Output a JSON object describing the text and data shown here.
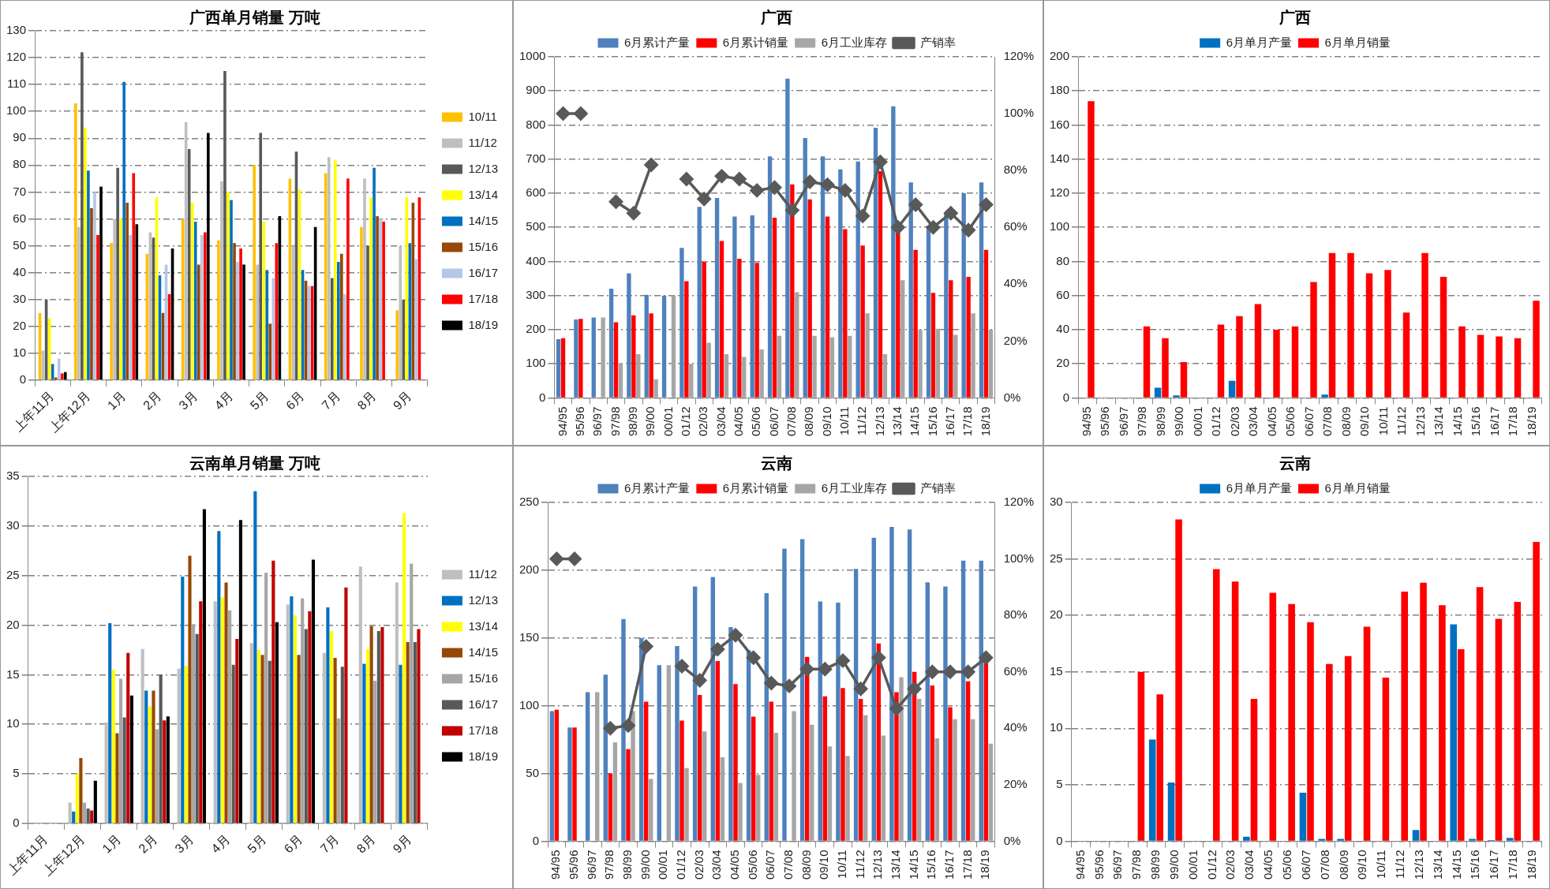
{
  "chart_data": [
    {
      "type": "bar",
      "title": "广西单月销量 万吨",
      "categories": [
        "上年11月",
        "上年12月",
        "1月",
        "2月",
        "3月",
        "4月",
        "5月",
        "6月",
        "7月",
        "8月",
        "9月"
      ],
      "ylim": [
        0,
        130
      ],
      "yticks": [
        0,
        10,
        20,
        30,
        40,
        50,
        60,
        70,
        80,
        90,
        100,
        110,
        120,
        130
      ],
      "grid": "y",
      "legend": "right",
      "series": [
        {
          "name": "10/11",
          "color": "#ffc000",
          "values": [
            25,
            103,
            51,
            47,
            60,
            52,
            80,
            75,
            77,
            57,
            26
          ]
        },
        {
          "name": "11/12",
          "color": "#bfbfbf",
          "values": [
            11,
            57,
            60,
            55,
            96,
            74,
            43,
            50,
            83,
            75,
            50
          ]
        },
        {
          "name": "12/13",
          "color": "#595959",
          "values": [
            30,
            122,
            79,
            53,
            86,
            115,
            92,
            85,
            38,
            50,
            30
          ]
        },
        {
          "name": "13/14",
          "color": "#ffff00",
          "values": [
            23,
            94,
            60,
            68,
            66,
            70,
            59,
            71,
            82,
            68,
            68
          ]
        },
        {
          "name": "14/15",
          "color": "#0070c0",
          "values": [
            6,
            78,
            111,
            39,
            59,
            67,
            41,
            41,
            44,
            79,
            51
          ]
        },
        {
          "name": "15/16",
          "color": "#974706",
          "values": [
            1,
            64,
            66,
            25,
            43,
            51,
            21,
            37,
            47,
            61,
            66
          ]
        },
        {
          "name": "16/17",
          "color": "#b4c7e7",
          "values": [
            8,
            70,
            54,
            43,
            54,
            44,
            38,
            35,
            32,
            60,
            45
          ]
        },
        {
          "name": "17/18",
          "color": "#ff0000",
          "values": [
            2.5,
            54,
            77,
            32,
            55,
            49,
            51,
            35,
            75,
            59,
            68
          ]
        },
        {
          "name": "18/19",
          "color": "#000000",
          "values": [
            3,
            72,
            58,
            49,
            92,
            43,
            61,
            57,
            null,
            null,
            null
          ]
        }
      ]
    },
    {
      "type": "bar",
      "title": "广西",
      "categories": [
        "94/95",
        "95/96",
        "96/97",
        "97/98",
        "98/99",
        "99/00",
        "00/01",
        "01/12",
        "02/03",
        "03/04",
        "04/05",
        "05/06",
        "06/07",
        "07/08",
        "08/09",
        "09/10",
        "10/11",
        "11/12",
        "12/13",
        "13/14",
        "14/15",
        "15/16",
        "16/17",
        "17/18",
        "18/19"
      ],
      "ylim": [
        0,
        1000
      ],
      "yticks": [
        0,
        100,
        200,
        300,
        400,
        500,
        600,
        700,
        800,
        900,
        1000
      ],
      "y2lim": [
        0,
        120
      ],
      "y2ticks": [
        {
          "value": 0,
          "label": "0%"
        },
        {
          "value": 20,
          "label": "20%"
        },
        {
          "value": 40,
          "label": "40%"
        },
        {
          "value": 60,
          "label": "60%"
        },
        {
          "value": 80,
          "label": "80%"
        },
        {
          "value": 100,
          "label": "100%"
        },
        {
          "value": 120,
          "label": "120%"
        }
      ],
      "grid": "y",
      "legend": "top",
      "marker": "diamond",
      "series": [
        {
          "name": "6月累计产量",
          "color": "#4f81bd",
          "values": [
            172,
            230,
            236,
            320,
            365,
            302,
            300,
            440,
            560,
            586,
            532,
            535,
            708,
            936,
            762,
            708,
            670,
            693,
            792,
            855,
            632,
            505,
            540,
            600,
            632
          ]
        },
        {
          "name": "6月累计销量",
          "color": "#ff0000",
          "values": [
            175,
            232,
            null,
            222,
            242,
            248,
            null,
            342,
            400,
            460,
            408,
            396,
            528,
            626,
            582,
            532,
            495,
            447,
            665,
            490,
            434,
            308,
            345,
            355,
            434
          ]
        },
        {
          "name": "6月工业库存",
          "color": "#a6a6a6",
          "values": [
            null,
            null,
            236,
            102,
            128,
            55,
            300,
            100,
            162,
            128,
            120,
            142,
            182,
            310,
            182,
            178,
            182,
            248,
            128,
            345,
            200,
            203,
            185,
            248,
            200
          ]
        },
        {
          "name": "产销率",
          "type": "line",
          "axis": "y2",
          "color": "#595959",
          "values": [
            100,
            100,
            null,
            69,
            65,
            82,
            null,
            77,
            70,
            78,
            77,
            73,
            74,
            66,
            76,
            75,
            73,
            64,
            83,
            60,
            68,
            60,
            65,
            59,
            68
          ]
        }
      ]
    },
    {
      "type": "bar",
      "title": "广西",
      "categories": [
        "94/95",
        "95/96",
        "96/97",
        "97/98",
        "98/99",
        "99/00",
        "00/01",
        "01/12",
        "02/03",
        "03/04",
        "04/05",
        "05/06",
        "06/07",
        "07/08",
        "08/09",
        "09/10",
        "10/11",
        "11/12",
        "12/13",
        "13/14",
        "14/15",
        "15/16",
        "16/17",
        "17/18",
        "18/19"
      ],
      "ylim": [
        0,
        200
      ],
      "yticks": [
        0,
        20,
        40,
        60,
        80,
        100,
        120,
        140,
        160,
        180,
        200
      ],
      "grid": "y",
      "legend": "top",
      "series": [
        {
          "name": "6月单月产量",
          "color": "#0070c0",
          "values": [
            null,
            null,
            null,
            null,
            6,
            1.5,
            null,
            null,
            10,
            null,
            null,
            null,
            null,
            2,
            null,
            null,
            null,
            null,
            null,
            null,
            null,
            null,
            null,
            null,
            null
          ]
        },
        {
          "name": "6月单月销量",
          "color": "#ff0000",
          "values": [
            174,
            null,
            null,
            42,
            35,
            21,
            null,
            43,
            48,
            55,
            40,
            42,
            68,
            85,
            85,
            73,
            75,
            50,
            85,
            71,
            42,
            37,
            36,
            35,
            57
          ]
        }
      ]
    },
    {
      "type": "bar",
      "title": "云南单月销量 万吨",
      "categories": [
        "上年11月",
        "上年12月",
        "1月",
        "2月",
        "3月",
        "4月",
        "5月",
        "6月",
        "7月",
        "8月",
        "9月"
      ],
      "ylim": [
        0,
        35
      ],
      "yticks": [
        0,
        5,
        10,
        15,
        20,
        25,
        30,
        35
      ],
      "grid": "y",
      "legend": "right",
      "series": [
        {
          "name": "11/12",
          "color": "#bfbfbf",
          "values": [
            null,
            2.1,
            10.2,
            17.6,
            15.6,
            22.4,
            18.2,
            22.1,
            17.2,
            25.9,
            24.3
          ]
        },
        {
          "name": "12/13",
          "color": "#0070c0",
          "values": [
            null,
            1.2,
            20.2,
            13.4,
            24.9,
            29.5,
            33.5,
            22.9,
            21.8,
            16.1,
            16
          ]
        },
        {
          "name": "13/14",
          "color": "#ffff00",
          "values": [
            null,
            5,
            15.5,
            11.8,
            15.9,
            22.8,
            17.5,
            21,
            19.4,
            17.6,
            31.3
          ]
        },
        {
          "name": "14/15",
          "color": "#974706",
          "values": [
            null,
            6.6,
            9.1,
            13.4,
            27,
            24.3,
            17,
            17,
            16.7,
            19.9,
            18.3
          ]
        },
        {
          "name": "15/16",
          "color": "#a6a6a6",
          "values": [
            null,
            2.1,
            14.6,
            9.5,
            20.1,
            21.5,
            25.3,
            22.7,
            10.6,
            14.4,
            26.2
          ]
        },
        {
          "name": "16/17",
          "color": "#595959",
          "values": [
            null,
            1.5,
            10.7,
            15,
            19.1,
            16,
            16.4,
            19.6,
            15.8,
            19.4,
            18.3
          ]
        },
        {
          "name": "17/18",
          "color": "#c00000",
          "values": [
            null,
            1.3,
            17.2,
            10.4,
            22.4,
            18.6,
            26.5,
            21.4,
            23.8,
            19.8,
            19.6
          ]
        },
        {
          "name": "18/19",
          "color": "#000000",
          "values": [
            null,
            4.3,
            12.9,
            10.8,
            31.7,
            30.6,
            20.3,
            26.6,
            null,
            null,
            null
          ]
        }
      ]
    },
    {
      "type": "bar",
      "title": "云南",
      "categories": [
        "94/95",
        "95/96",
        "96/97",
        "97/98",
        "98/99",
        "99/00",
        "00/01",
        "01/12",
        "02/03",
        "03/04",
        "04/05",
        "05/06",
        "06/07",
        "07/08",
        "08/09",
        "09/10",
        "10/11",
        "11/12",
        "12/13",
        "13/14",
        "14/15",
        "15/16",
        "16/17",
        "17/18",
        "18/19"
      ],
      "ylim": [
        0,
        250
      ],
      "yticks": [
        0,
        50,
        100,
        150,
        200,
        250
      ],
      "y2lim": [
        0,
        120
      ],
      "y2ticks": [
        {
          "value": 0,
          "label": "0%"
        },
        {
          "value": 20,
          "label": "20%"
        },
        {
          "value": 40,
          "label": "40%"
        },
        {
          "value": 60,
          "label": "60%"
        },
        {
          "value": 80,
          "label": "80%"
        },
        {
          "value": 100,
          "label": "100%"
        },
        {
          "value": 120,
          "label": "120%"
        }
      ],
      "grid": "y",
      "legend": "top",
      "marker": "diamond",
      "series": [
        {
          "name": "6月累计产量",
          "color": "#4f81bd",
          "values": [
            96,
            84,
            110,
            123,
            164,
            150,
            130,
            144,
            188,
            195,
            158,
            141,
            183,
            216,
            223,
            177,
            176,
            201,
            224,
            232,
            230,
            191,
            188,
            207,
            207
          ]
        },
        {
          "name": "6月累计销量",
          "color": "#ff0000",
          "values": [
            97,
            84,
            null,
            50,
            68,
            103,
            null,
            89,
            108,
            133,
            116,
            92,
            103,
            null,
            136,
            107,
            113,
            105,
            146,
            110,
            125,
            115,
            99,
            118,
            133
          ]
        },
        {
          "name": "6月工业库存",
          "color": "#a6a6a6",
          "values": [
            null,
            null,
            110,
            73,
            96,
            46,
            130,
            54,
            81,
            62,
            43,
            49,
            80,
            96,
            86,
            70,
            63,
            93,
            78,
            121,
            105,
            76,
            90,
            90,
            72
          ]
        },
        {
          "name": "产销率",
          "type": "line",
          "axis": "y2",
          "color": "#595959",
          "values": [
            100,
            100,
            null,
            40,
            41,
            69,
            null,
            62,
            57,
            68,
            73,
            65,
            56,
            55,
            61,
            61,
            64,
            54,
            65,
            47,
            54,
            60,
            60,
            60,
            65
          ]
        }
      ]
    },
    {
      "type": "bar",
      "title": "云南",
      "categories": [
        "94/95",
        "95/96",
        "96/97",
        "97/98",
        "98/99",
        "99/00",
        "00/01",
        "01/12",
        "02/03",
        "03/04",
        "04/05",
        "05/06",
        "06/07",
        "07/08",
        "08/09",
        "09/10",
        "10/11",
        "11/12",
        "12/13",
        "13/14",
        "14/15",
        "15/16",
        "16/17",
        "17/18",
        "18/19"
      ],
      "ylim": [
        0,
        30
      ],
      "yticks": [
        0,
        5,
        10,
        15,
        20,
        25,
        30
      ],
      "grid": "y",
      "legend": "top",
      "series": [
        {
          "name": "6月单月产量",
          "color": "#0070c0",
          "values": [
            null,
            null,
            null,
            null,
            9,
            5.2,
            null,
            null,
            null,
            0.4,
            null,
            null,
            4.3,
            0.2,
            0.2,
            null,
            null,
            null,
            1,
            null,
            19.2,
            0.2,
            0.1,
            0.3,
            null
          ]
        },
        {
          "name": "6月单月销量",
          "color": "#ff0000",
          "values": [
            null,
            null,
            null,
            15,
            13,
            28.5,
            null,
            24.1,
            23,
            12.6,
            22,
            21,
            19.4,
            15.7,
            16.4,
            19,
            14.5,
            22.1,
            22.9,
            20.9,
            17,
            22.5,
            19.7,
            21.2,
            26.5
          ]
        }
      ]
    }
  ]
}
